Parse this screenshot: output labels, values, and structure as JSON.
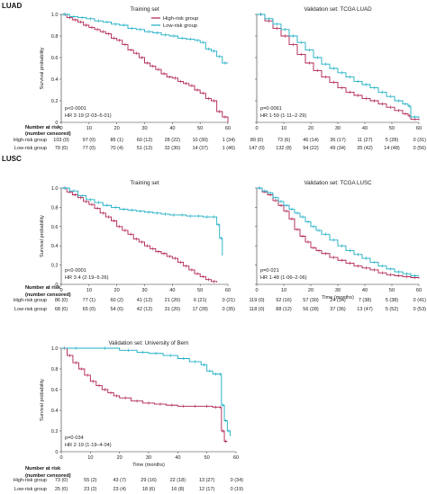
{
  "colors": {
    "high": "#b0204e",
    "low": "#1aaec4",
    "axis": "#333333"
  },
  "sections": [
    {
      "label": "LUAD",
      "y": 4
    },
    {
      "label": "LUSC",
      "y": 172
    }
  ],
  "chart_data": [
    {
      "id": "luad-train",
      "type": "line",
      "title": "Training set",
      "ylabel": "Survival probability",
      "xlabel": "",
      "xlim": [
        0,
        60
      ],
      "ylim": [
        0,
        1
      ],
      "xticks": [
        "0",
        "10",
        "20",
        "30",
        "40",
        "50",
        "60"
      ],
      "yticks": [
        "0",
        "0.2",
        "0.4",
        "0.6",
        "0.8",
        "1.0"
      ],
      "legend": {
        "position": "top-right",
        "entries": [
          "High-risk group",
          "Low-risk group"
        ]
      },
      "stats": [
        "p<0·0001",
        "HR 3·19 (2·03–5·01)"
      ],
      "series": [
        {
          "name": "High-risk group",
          "x": [
            0,
            2,
            4,
            6,
            8,
            10,
            12,
            14,
            16,
            18,
            20,
            22,
            24,
            26,
            28,
            30,
            32,
            34,
            36,
            38,
            40,
            42,
            44,
            46,
            48,
            50,
            52,
            54,
            56,
            58,
            60
          ],
          "y": [
            1.0,
            0.97,
            0.95,
            0.93,
            0.9,
            0.88,
            0.86,
            0.84,
            0.82,
            0.78,
            0.76,
            0.72,
            0.67,
            0.64,
            0.6,
            0.55,
            0.52,
            0.49,
            0.45,
            0.42,
            0.41,
            0.38,
            0.36,
            0.34,
            0.3,
            0.27,
            0.22,
            0.2,
            0.1,
            0.05,
            0.0
          ]
        },
        {
          "name": "Low-risk group",
          "x": [
            0,
            3,
            6,
            9,
            12,
            15,
            18,
            21,
            24,
            27,
            30,
            33,
            36,
            39,
            42,
            45,
            48,
            50,
            52,
            54,
            56,
            58,
            60
          ],
          "y": [
            1.0,
            0.98,
            0.97,
            0.96,
            0.94,
            0.93,
            0.91,
            0.9,
            0.87,
            0.86,
            0.84,
            0.83,
            0.81,
            0.8,
            0.78,
            0.77,
            0.76,
            0.74,
            0.68,
            0.66,
            0.61,
            0.55,
            0.55
          ]
        }
      ],
      "risk": {
        "header": [
          "Number at risk",
          "(number censored)"
        ],
        "rows": [
          {
            "label": "High-risk group",
            "values": [
              "103 (0)",
              "97 (0)",
              "85 (1)",
              "60 (12)",
              "28 (22)",
              "10 (30)",
              "1 (34)"
            ]
          },
          {
            "label": "Low-risk group",
            "values": [
              "79 (0)",
              "77 (0)",
              "70 (4)",
              "51 (12)",
              "32 (30)",
              "14 (37)",
              "1 (46)"
            ]
          }
        ]
      }
    },
    {
      "id": "luad-valid",
      "type": "line",
      "title": "Validation set: TCGA LUAD",
      "ylabel": "",
      "xlabel": "",
      "xlim": [
        0,
        60
      ],
      "ylim": [
        0,
        1
      ],
      "xticks": [
        "0",
        "10",
        "20",
        "30",
        "40",
        "50",
        "60"
      ],
      "yticks": [],
      "stats": [
        "p=0·0061",
        "HR 1·59 (1·11–2·29)"
      ],
      "series": [
        {
          "name": "High-risk group",
          "x": [
            0,
            3,
            6,
            9,
            12,
            15,
            18,
            21,
            24,
            27,
            30,
            33,
            36,
            39,
            42,
            45,
            48,
            51,
            54,
            56,
            57,
            60
          ],
          "y": [
            1.0,
            0.94,
            0.87,
            0.8,
            0.72,
            0.63,
            0.55,
            0.48,
            0.42,
            0.37,
            0.32,
            0.28,
            0.25,
            0.22,
            0.2,
            0.17,
            0.14,
            0.11,
            0.08,
            0.06,
            0.03,
            0.02
          ]
        },
        {
          "name": "Low-risk group",
          "x": [
            0,
            3,
            6,
            9,
            12,
            15,
            18,
            21,
            24,
            27,
            30,
            33,
            36,
            39,
            42,
            45,
            48,
            51,
            54,
            56,
            57,
            60
          ],
          "y": [
            1.0,
            0.96,
            0.91,
            0.86,
            0.8,
            0.74,
            0.67,
            0.6,
            0.54,
            0.5,
            0.46,
            0.42,
            0.38,
            0.35,
            0.32,
            0.28,
            0.24,
            0.2,
            0.17,
            0.15,
            0.05,
            0.04
          ]
        }
      ],
      "risk": {
        "rows": [
          {
            "label": "",
            "values": [
              "89 (0)",
              "73 (6)",
              "46 (14)",
              "36 (17)",
              "11 (27)",
              "5 (28)",
              "0 (31)"
            ]
          },
          {
            "label": "",
            "values": [
              "147 (0)",
              "132 (8)",
              "94 (22)",
              "49 (34)",
              "35 (42)",
              "14 (48)",
              "0 (56)"
            ]
          }
        ]
      }
    },
    {
      "id": "lusc-train",
      "type": "line",
      "title": "Training set",
      "ylabel": "Survival probability",
      "xlabel": "",
      "xlim": [
        0,
        60
      ],
      "ylim": [
        0,
        1
      ],
      "xticks": [
        "0",
        "10",
        "20",
        "30",
        "40",
        "50",
        "60"
      ],
      "yticks": [
        "0",
        "0.2",
        "0.4",
        "0.6",
        "0.8",
        "1.0"
      ],
      "stats": [
        "p<0·0001",
        "HR 3·4 (2·19–5·26)"
      ],
      "series": [
        {
          "name": "High-risk group",
          "x": [
            0,
            2,
            4,
            6,
            8,
            10,
            12,
            14,
            16,
            18,
            20,
            22,
            24,
            26,
            28,
            30,
            32,
            34,
            36,
            38,
            40,
            42,
            44,
            46,
            48,
            50,
            52,
            54,
            56
          ],
          "y": [
            1.0,
            0.96,
            0.93,
            0.9,
            0.86,
            0.83,
            0.79,
            0.74,
            0.7,
            0.66,
            0.6,
            0.56,
            0.52,
            0.47,
            0.44,
            0.4,
            0.37,
            0.34,
            0.32,
            0.29,
            0.27,
            0.23,
            0.19,
            0.15,
            0.11,
            0.08,
            0.05,
            0.03,
            0.02
          ]
        },
        {
          "name": "Low-risk group",
          "x": [
            0,
            3,
            6,
            9,
            12,
            15,
            18,
            21,
            24,
            27,
            30,
            33,
            36,
            39,
            42,
            45,
            48,
            51,
            54,
            56,
            57,
            58
          ],
          "y": [
            1.0,
            0.97,
            0.92,
            0.88,
            0.85,
            0.82,
            0.8,
            0.78,
            0.77,
            0.76,
            0.75,
            0.74,
            0.73,
            0.72,
            0.72,
            0.71,
            0.71,
            0.7,
            0.7,
            0.62,
            0.48,
            0.3
          ]
        }
      ],
      "risk": {
        "header": [
          "Number at risk",
          "(number censored)"
        ],
        "rows": [
          {
            "label": "High-risk group",
            "values": [
              "86 (0)",
              "77 (1)",
              "60 (2)",
              "41 (12)",
              "21 (20)",
              "6 (21)",
              "0 (21)"
            ]
          },
          {
            "label": "Low-risk group",
            "values": [
              "68 (0)",
              "65 (0)",
              "54 (6)",
              "42 (12)",
              "31 (20)",
              "17 (28)",
              "0 (35)"
            ]
          }
        ]
      }
    },
    {
      "id": "lusc-valid",
      "type": "line",
      "title": "Validation set: TCGA LUSC",
      "ylabel": "",
      "xlabel": "Time (months)",
      "xlim": [
        0,
        60
      ],
      "ylim": [
        0,
        1
      ],
      "xticks": [
        "0",
        "10",
        "20",
        "30",
        "40",
        "50",
        "60"
      ],
      "yticks": [],
      "stats": [
        "p=0·021",
        "HR 1·48 (1·06–2·06)"
      ],
      "series": [
        {
          "name": "High-risk group",
          "x": [
            0,
            2,
            4,
            6,
            8,
            10,
            12,
            14,
            16,
            18,
            20,
            22,
            24,
            27,
            30,
            33,
            36,
            39,
            42,
            45,
            48,
            51,
            54,
            57,
            60
          ],
          "y": [
            1.0,
            0.96,
            0.93,
            0.87,
            0.82,
            0.76,
            0.68,
            0.57,
            0.5,
            0.44,
            0.38,
            0.35,
            0.32,
            0.28,
            0.25,
            0.22,
            0.19,
            0.17,
            0.15,
            0.12,
            0.1,
            0.09,
            0.08,
            0.07,
            0.06
          ]
        },
        {
          "name": "Low-risk group",
          "x": [
            0,
            2,
            4,
            6,
            8,
            10,
            12,
            14,
            16,
            18,
            20,
            22,
            24,
            27,
            30,
            33,
            36,
            39,
            42,
            45,
            48,
            51,
            54,
            57,
            60
          ],
          "y": [
            1.0,
            0.97,
            0.95,
            0.9,
            0.86,
            0.82,
            0.78,
            0.74,
            0.7,
            0.65,
            0.6,
            0.56,
            0.52,
            0.46,
            0.4,
            0.35,
            0.31,
            0.27,
            0.23,
            0.19,
            0.16,
            0.13,
            0.11,
            0.09,
            0.09
          ]
        }
      ],
      "risk": {
        "rows": [
          {
            "label": "",
            "values": [
              "119 (0)",
              "92 (16)",
              "57 (30)",
              "24 (34)",
              "7 (38)",
              "5 (38)",
              "0 (41)"
            ]
          },
          {
            "label": "",
            "values": [
              "118 (0)",
              "88 (12)",
              "56 (28)",
              "37 (36)",
              "13 (47)",
              "5 (52)",
              "0 (53)"
            ]
          }
        ]
      }
    },
    {
      "id": "bern-valid",
      "type": "line",
      "title": "Validation set: University of Bern",
      "ylabel": "Survival probability",
      "xlabel": "Time (months)",
      "xlim": [
        0,
        60
      ],
      "ylim": [
        0,
        1
      ],
      "xticks": [
        "0",
        "10",
        "20",
        "30",
        "40",
        "50",
        "60"
      ],
      "yticks": [
        "0",
        "0.2",
        "0.4",
        "0.6",
        "0.8",
        "1.0"
      ],
      "stats": [
        "p=0·034",
        "HR 2·19 (1·19–4·04)"
      ],
      "series": [
        {
          "name": "High-risk group",
          "x": [
            0,
            2,
            4,
            6,
            8,
            10,
            12,
            14,
            16,
            18,
            20,
            24,
            28,
            32,
            36,
            40,
            44,
            48,
            52,
            54,
            55,
            56,
            57
          ],
          "y": [
            1.0,
            0.93,
            0.86,
            0.8,
            0.74,
            0.68,
            0.64,
            0.6,
            0.57,
            0.54,
            0.52,
            0.49,
            0.47,
            0.46,
            0.45,
            0.44,
            0.44,
            0.44,
            0.43,
            0.43,
            0.2,
            0.1,
            0.1
          ]
        },
        {
          "name": "Low-risk group",
          "x": [
            0,
            10,
            20,
            26,
            30,
            35,
            40,
            44,
            48,
            50,
            52,
            54,
            55,
            56,
            57,
            58
          ],
          "y": [
            1.0,
            1.0,
            0.98,
            0.96,
            0.95,
            0.93,
            0.9,
            0.87,
            0.84,
            0.78,
            0.75,
            0.75,
            0.45,
            0.3,
            0.2,
            0.15
          ]
        }
      ],
      "risk": {
        "header": [
          "Number at risk",
          "(number censored)"
        ],
        "rows": [
          {
            "label": "High-risk group",
            "values": [
              "73 (0)",
              "55 (2)",
              "43 (7)",
              "29 (16)",
              "22 (18)",
              "13 (27)",
              "0 (34)"
            ]
          },
          {
            "label": "Low-risk group",
            "values": [
              "25 (0)",
              "23 (2)",
              "23 (4)",
              "18 (6)",
              "16 (8)",
              "12 (17)",
              "0 (19)"
            ]
          }
        ]
      }
    }
  ]
}
